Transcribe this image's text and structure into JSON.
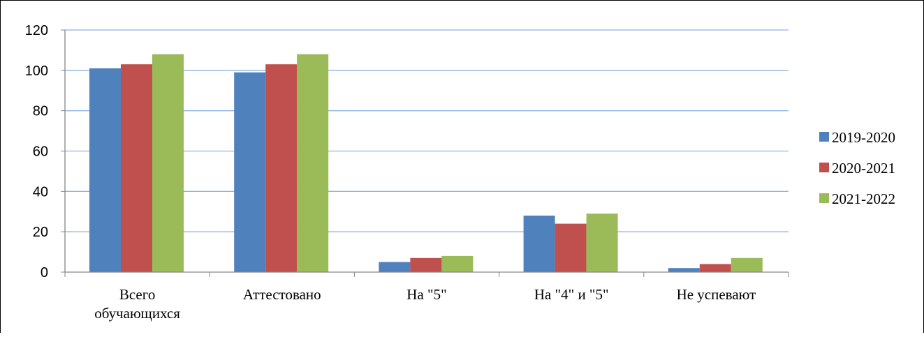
{
  "chart_data": {
    "type": "bar",
    "categories": [
      "Всего обучающихся",
      "Аттестовано",
      "На \"5\"",
      "На \"4\" и \"5\"",
      "Не успевают"
    ],
    "category_lines": [
      [
        "Всего",
        "обучающихся"
      ],
      [
        "Аттестовано"
      ],
      [
        "На \"5\""
      ],
      [
        "На \"4\" и \"5\""
      ],
      [
        "Не успевают"
      ]
    ],
    "series": [
      {
        "name": "2019-2020",
        "color": "#4F81BD",
        "values": [
          101,
          99,
          5,
          28,
          2
        ]
      },
      {
        "name": "2020-2021",
        "color": "#C0504D",
        "values": [
          103,
          103,
          7,
          24,
          4
        ]
      },
      {
        "name": "2021-2022",
        "color": "#9BBB59",
        "values": [
          108,
          108,
          8,
          29,
          7
        ]
      }
    ],
    "ylim": [
      0,
      120
    ],
    "yticks": [
      0,
      20,
      40,
      60,
      80,
      100,
      120
    ],
    "ytick_labels": [
      "0",
      "20",
      "40",
      "60",
      "80",
      "100",
      "120"
    ],
    "grid": true,
    "gridline_color": "#8EB4E3",
    "legend_position": "right",
    "title": "",
    "xlabel": "",
    "ylabel": ""
  }
}
